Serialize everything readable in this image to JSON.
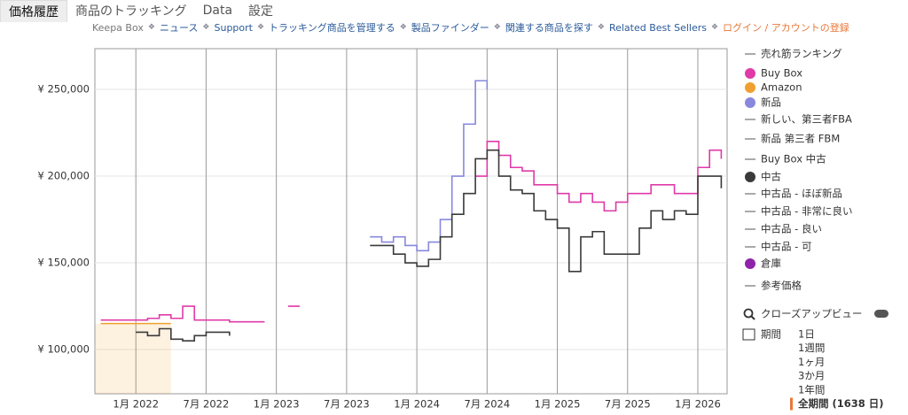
{
  "tabs": [
    "価格履歴",
    "商品のトラッキング",
    "Data",
    "設定"
  ],
  "nav": [
    "Keepa Box",
    "ニュース",
    "Support",
    "トラッキング商品を管理する",
    "製品ファインダー",
    "関連する商品を探す",
    "Related Best Sellers",
    "ログイン / アカウントの登録"
  ],
  "sidebar": {
    "legend_extra": [
      {
        "label": "売れ筋ランキング"
      },
      {
        "label": "新しい、第三者FBA"
      },
      {
        "label": "新品 第三者 FBM"
      },
      {
        "label": "Buy Box 中古"
      },
      {
        "label": "中古品 - ほぼ新品"
      },
      {
        "label": "中古品 - 非常に良い"
      },
      {
        "label": "中古品 - 良い"
      },
      {
        "label": "中古品 - 可"
      },
      {
        "label": "倉庫",
        "color": "#8e24aa"
      },
      {
        "label": "参考価格"
      }
    ],
    "closeup": "クローズアップビュー",
    "period_label": "期間",
    "periods": [
      "1日",
      "1週間",
      "1ヶ月",
      "3か月",
      "1年間",
      "全期間 (1638 日)"
    ]
  },
  "chart_data": {
    "type": "line",
    "categories": [
      null,
      null,
      null,
      "1月 2022",
      null,
      null,
      null,
      null,
      null,
      "7月 2022",
      null,
      null,
      null,
      null,
      null,
      "1月 2023",
      null,
      null,
      null,
      null,
      null,
      "7月 2023",
      null,
      null,
      null,
      null,
      null,
      "1月 2024",
      null,
      null,
      null,
      null,
      null,
      "7月 2024",
      null,
      null,
      null,
      null,
      null,
      "1月 2025",
      null,
      null,
      null,
      null,
      null,
      "7月 2025",
      null,
      null,
      null,
      null,
      null,
      "1月 2026",
      null,
      null
    ],
    "ylim": [
      74500,
      273500
    ],
    "yticks": [
      {
        "value": 100000,
        "label": "¥ 100,000"
      },
      {
        "value": 150000,
        "label": "¥ 150,000"
      },
      {
        "value": 200000,
        "label": "¥ 200,000"
      },
      {
        "value": 250000,
        "label": "¥ 250,000"
      }
    ],
    "grid": true,
    "series": [
      {
        "name": "Buy Box",
        "color": "#e03aa8",
        "values": [
          117000,
          117000,
          117000,
          117000,
          118000,
          120000,
          118000,
          125000,
          117000,
          117000,
          117000,
          116000,
          116000,
          116000,
          116000,
          null,
          125000,
          125000,
          null,
          null,
          null,
          null,
          null,
          null,
          null,
          null,
          null,
          null,
          null,
          null,
          null,
          null,
          200000,
          220000,
          212000,
          205000,
          203000,
          195000,
          195000,
          190000,
          185000,
          190000,
          185000,
          180000,
          185000,
          190000,
          190000,
          195000,
          195000,
          190000,
          190000,
          205000,
          215000,
          210000
        ]
      },
      {
        "name": "Amazon",
        "color": "#f0a030",
        "values": [
          115000,
          115000,
          115000,
          115000,
          115000,
          115000,
          115000,
          null,
          null,
          null,
          null,
          null,
          null,
          null,
          null,
          null,
          null,
          null,
          null,
          null,
          null,
          null,
          null,
          null,
          null,
          null,
          null,
          null,
          null,
          null,
          null,
          null,
          null,
          null,
          null,
          null,
          null,
          null,
          null,
          null,
          null,
          null,
          null,
          null,
          null,
          null,
          null,
          null,
          null,
          null,
          null,
          null,
          null,
          null
        ]
      },
      {
        "name": "新品",
        "color": "#8888dd",
        "values": [
          null,
          null,
          null,
          null,
          null,
          null,
          null,
          null,
          null,
          null,
          null,
          null,
          null,
          null,
          null,
          null,
          null,
          null,
          null,
          null,
          null,
          null,
          null,
          165000,
          162000,
          165000,
          160000,
          157000,
          162000,
          175000,
          200000,
          230000,
          255000,
          250000,
          null,
          null,
          null,
          null,
          null,
          null,
          null,
          null,
          null,
          null,
          null,
          null,
          null,
          null,
          null,
          null,
          null,
          null,
          null,
          null
        ]
      },
      {
        "name": "中古",
        "color": "#3a3a3a",
        "values": [
          null,
          null,
          null,
          110000,
          108000,
          112000,
          106000,
          105000,
          108000,
          110000,
          110000,
          108000,
          null,
          null,
          null,
          null,
          null,
          null,
          null,
          null,
          null,
          null,
          null,
          160000,
          160000,
          155000,
          150000,
          148000,
          152000,
          165000,
          178000,
          190000,
          210000,
          215000,
          200000,
          192000,
          190000,
          180000,
          175000,
          170000,
          145000,
          165000,
          168000,
          155000,
          155000,
          155000,
          170000,
          180000,
          175000,
          180000,
          178000,
          200000,
          200000,
          193000
        ]
      }
    ]
  }
}
